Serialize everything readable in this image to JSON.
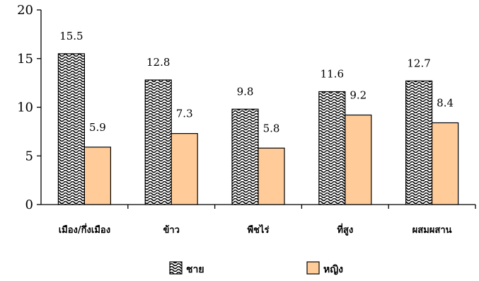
{
  "chart_data": {
    "type": "bar",
    "title": "",
    "xlabel": "",
    "ylabel": "",
    "categories": [
      "เมือง/กึ่งเมือง",
      "ข้าว",
      "พืชไร่",
      "ที่สูง",
      "ผสมผสาน"
    ],
    "series": [
      {
        "name": "ชาย",
        "values": [
          15.5,
          12.8,
          9.8,
          11.6,
          12.7
        ],
        "fill": "wave-hatch"
      },
      {
        "name": "หญิง",
        "values": [
          5.9,
          7.3,
          5.8,
          9.2,
          8.4
        ],
        "fill": "#FFCC99"
      }
    ],
    "value_labels": {
      "ชาย": [
        "15.5",
        "12.8",
        "9.8",
        "11.6",
        "12.7"
      ],
      "หญิง": [
        "5.9",
        "7.3",
        "5.8",
        "9.2",
        "8.4"
      ]
    },
    "ylim": [
      0,
      20
    ],
    "yticks": [
      "0",
      "5",
      "10",
      "15",
      "20"
    ],
    "grid": false,
    "legend_position": "bottom"
  }
}
